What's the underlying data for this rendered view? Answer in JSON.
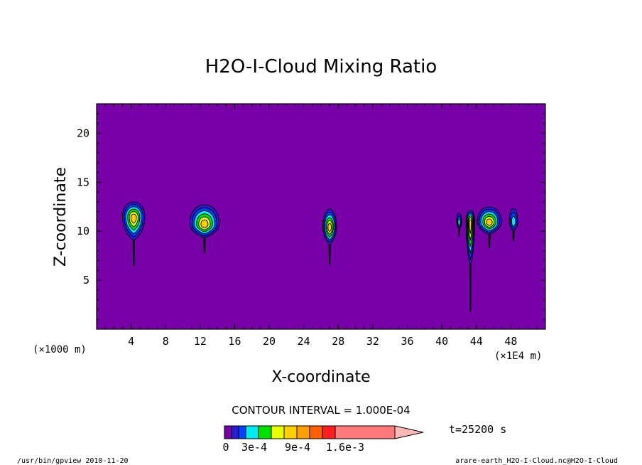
{
  "chart_data": {
    "type": "heatmap",
    "title": "H2O-I-Cloud Mixing Ratio",
    "xlabel": "X-coordinate",
    "ylabel": "Z-coordinate",
    "x_unit_left": "(×1000 m)",
    "x_unit_right": "(×1E4 m)",
    "xlim": [
      0,
      52
    ],
    "ylim": [
      0,
      23
    ],
    "xticks": [
      4,
      8,
      12,
      16,
      20,
      24,
      28,
      32,
      36,
      40,
      44,
      48
    ],
    "xtick_labels": [
      "4",
      "8",
      "12",
      "16",
      "20",
      "24",
      "28",
      "32",
      "36",
      "40",
      "44",
      "48"
    ],
    "yticks": [
      5,
      10,
      15,
      20
    ],
    "ytick_labels": [
      "5",
      "10",
      "15",
      "20"
    ],
    "contour_interval": "CONTOUR INTERVAL = 1.000E-04",
    "time_label": "t=25200 s",
    "colorbar_labels": [
      "0",
      "3e-4",
      "9e-4",
      "1.6e-3"
    ],
    "colorbar_levels": [
      0,
      0.0001,
      0.0002,
      0.0003,
      0.0004,
      0.0005,
      0.0006,
      0.0007,
      0.0008,
      0.0009,
      0.0016
    ],
    "colors": [
      "#7700a8",
      "#2a1ad8",
      "#0040ff",
      "#00e8f0",
      "#00e000",
      "#e8ff00",
      "#ffd000",
      "#ffa000",
      "#ff6000",
      "#ff1e1e",
      "#ff7a7a",
      "#ffb8b8"
    ],
    "background_color": "#7700a8",
    "clouds": [
      {
        "x": 4.3,
        "z_top": 13.3,
        "z_bottom": 6.5,
        "width": 2.6,
        "peak": 6,
        "core_z": 11.5
      },
      {
        "x": 12.5,
        "z_top": 13.1,
        "z_bottom": 7.8,
        "width": 3.4,
        "peak": 6,
        "core_z": 10.8
      },
      {
        "x": 27.0,
        "z_top": 12.6,
        "z_bottom": 6.6,
        "width": 1.6,
        "peak": 6,
        "core_z": 10.5
      },
      {
        "x": 42.0,
        "z_top": 12.0,
        "z_bottom": 9.5,
        "width": 0.6,
        "peak": 3,
        "core_z": 11.0
      },
      {
        "x": 43.3,
        "z_top": 12.4,
        "z_bottom": 1.8,
        "width": 1.0,
        "peak": 6,
        "core_z": 11.0
      },
      {
        "x": 45.5,
        "z_top": 12.8,
        "z_bottom": 8.3,
        "width": 2.8,
        "peak": 6,
        "core_z": 11.0
      },
      {
        "x": 48.3,
        "z_top": 12.6,
        "z_bottom": 9.0,
        "width": 1.0,
        "peak": 3,
        "core_z": 11.0
      }
    ]
  },
  "footer": {
    "left": "/usr/bin/gpview  2010-11-20",
    "right": "arare-earth_H2O-I-Cloud.nc@H2O-I-Cloud"
  }
}
